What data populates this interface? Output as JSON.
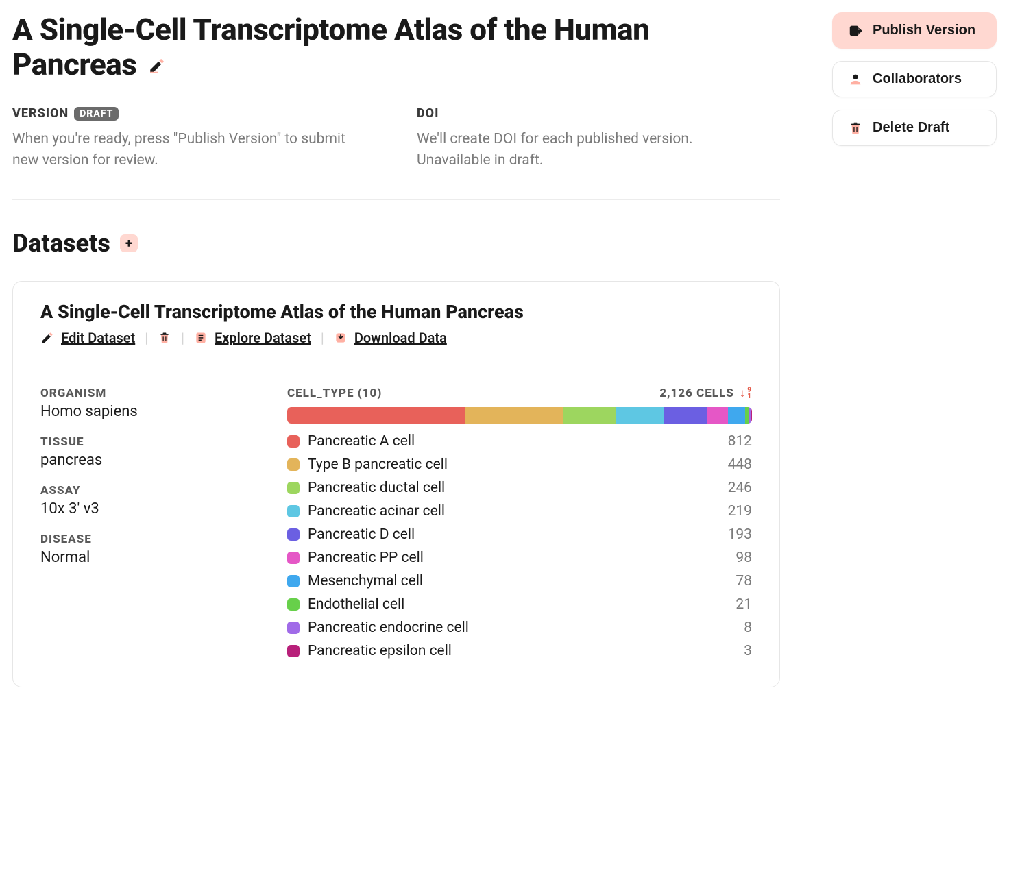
{
  "title": "A Single-Cell Transcriptome Atlas of the Human Pancreas",
  "version": {
    "label": "VERSION",
    "badge": "DRAFT",
    "help": "When you're ready, press \"Publish Version\" to submit new version for review."
  },
  "doi": {
    "label": "DOI",
    "help": "We'll create DOI for each published version. Unavailable in draft."
  },
  "buttons": {
    "publish": "Publish Version",
    "collaborators": "Collaborators",
    "delete_draft": "Delete Draft"
  },
  "datasets_section": {
    "title": "Datasets"
  },
  "dataset": {
    "title": "A Single-Cell Transcriptome Atlas of the Human Pancreas",
    "actions": {
      "edit": "Edit Dataset",
      "explore": "Explore Dataset",
      "download": "Download Data"
    },
    "attrs": {
      "organism_label": "ORGANISM",
      "organism": "Homo sapiens",
      "tissue_label": "TISSUE",
      "tissue": "pancreas",
      "assay_label": "ASSAY",
      "assay": "10x 3' v3",
      "disease_label": "DISEASE",
      "disease": "Normal"
    },
    "cell_type": {
      "label": "CELL_TYPE (10)",
      "total_label": "2,126 CELLS",
      "total": 2126,
      "items": [
        {
          "name": "Pancreatic A cell",
          "count": 812,
          "color": "#e8615a"
        },
        {
          "name": "Type B pancreatic cell",
          "count": 448,
          "color": "#e3b45a"
        },
        {
          "name": "Pancreatic ductal cell",
          "count": 246,
          "color": "#9dd65f"
        },
        {
          "name": "Pancreatic acinar cell",
          "count": 219,
          "color": "#5ec7e3"
        },
        {
          "name": "Pancreatic D cell",
          "count": 193,
          "color": "#6b5fe2"
        },
        {
          "name": "Pancreatic PP cell",
          "count": 98,
          "color": "#e557c6"
        },
        {
          "name": "Mesenchymal cell",
          "count": 78,
          "color": "#3fa8ee"
        },
        {
          "name": "Endothelial cell",
          "count": 21,
          "color": "#67d04a"
        },
        {
          "name": "Pancreatic endocrine cell",
          "count": 8,
          "color": "#a06be8"
        },
        {
          "name": "Pancreatic epsilon cell",
          "count": 3,
          "color": "#b8207a"
        }
      ]
    }
  },
  "colors": {
    "accent_bg": "#ffd8d1",
    "accent_dark": "#1a1a1a",
    "muted": "#7b7b7b",
    "border": "#e6e6e6",
    "sort_accent": "#e45a4a"
  }
}
